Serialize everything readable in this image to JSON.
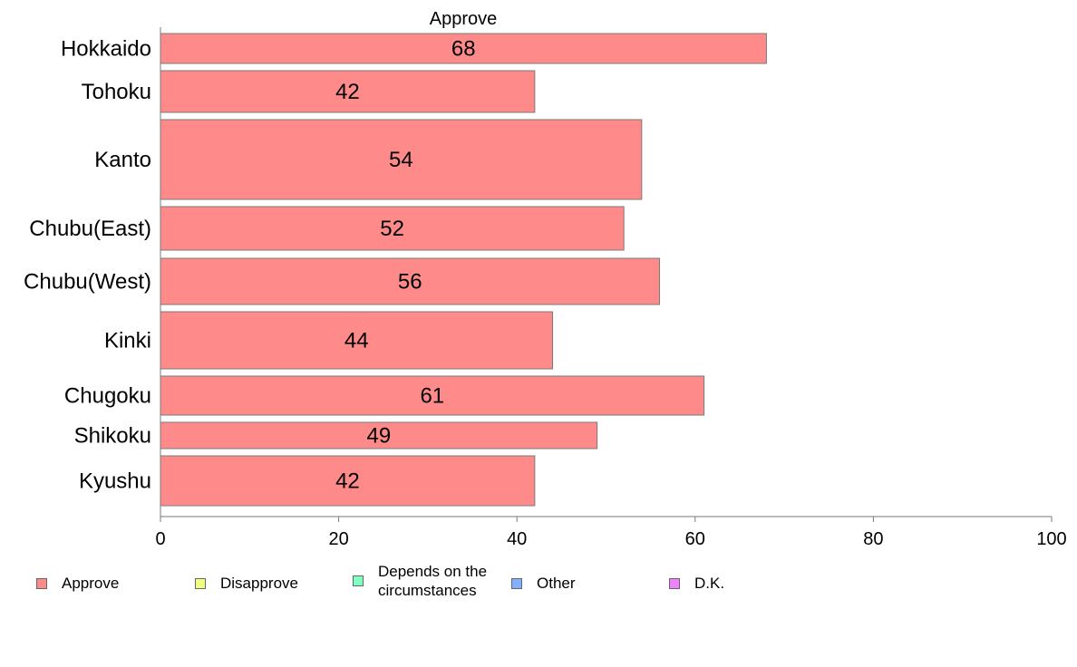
{
  "chart_data": {
    "type": "bar",
    "orientation": "horizontal",
    "title": "Approve",
    "categories": [
      "Hokkaido",
      "Tohoku",
      "Kanto",
      "Chubu(East)",
      "Chubu(West)",
      "Kinki",
      "Chugoku",
      "Shikoku",
      "Kyushu"
    ],
    "series": [
      {
        "name": "Approve",
        "values": [
          68,
          42,
          54,
          52,
          56,
          44,
          61,
          49,
          42
        ],
        "color": "#ff8a8a"
      }
    ],
    "data_labels": [
      "68",
      "42",
      "54",
      "52",
      "56",
      "44",
      "61",
      "49",
      "42"
    ],
    "xlim": [
      0,
      100
    ],
    "xticks": [
      0,
      20,
      40,
      60,
      80,
      100
    ],
    "xtick_labels": [
      "0",
      "20",
      "40",
      "60",
      "80",
      "100"
    ],
    "grid": false,
    "legend_position": "bottom",
    "legend": [
      {
        "label": "Approve",
        "color": "#ff8a8a"
      },
      {
        "label": "Disapprove",
        "color": "#f0ff80"
      },
      {
        "label": "Depends on the circumstances",
        "color": "#80ffc0"
      },
      {
        "label": "Other",
        "color": "#80b0ff"
      },
      {
        "label": "D.K.",
        "color": "#f080ff"
      }
    ]
  }
}
